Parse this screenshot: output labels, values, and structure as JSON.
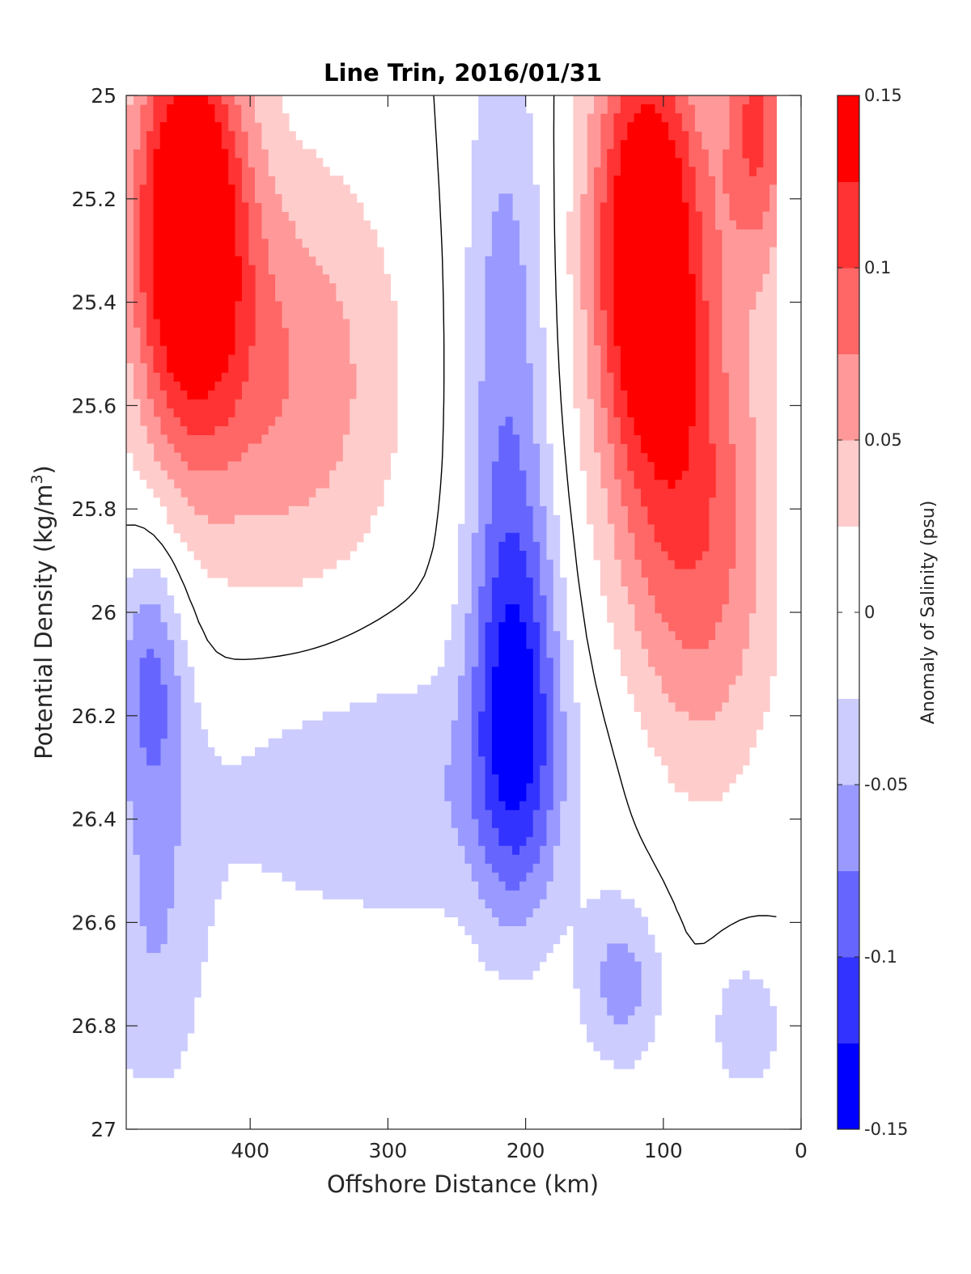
{
  "chart_data": {
    "type": "heatmap",
    "title": "Line Trin, 2016/01/31",
    "xlabel": "Offshore Distance (km)",
    "ylabel_prefix": "Potential Density (kg/m",
    "ylabel_sup": "3",
    "ylabel_suffix": ")",
    "xlim": [
      490,
      0
    ],
    "ylim": [
      25,
      27
    ],
    "x_reversed": true,
    "y_reversed": true,
    "x_ticks": [
      400,
      300,
      200,
      100,
      0
    ],
    "x_tick_labels": [
      "400",
      "300",
      "200",
      "100",
      "0"
    ],
    "y_ticks": [
      25,
      25.2,
      25.4,
      25.6,
      25.8,
      26,
      26.2,
      26.4,
      26.6,
      26.8,
      27
    ],
    "y_tick_labels": [
      "25",
      "25.2",
      "25.4",
      "25.6",
      "25.8",
      "26",
      "26.2",
      "26.4",
      "26.6",
      "26.8",
      "27"
    ],
    "colorbar": {
      "label": "Anomaly of Salinity (psu)",
      "range": [
        -0.15,
        0.15
      ],
      "level_step": 0.025,
      "tick_values": [
        -0.15,
        -0.1,
        -0.05,
        0,
        0.05,
        0.1,
        0.15
      ],
      "tick_labels": [
        "-0.15",
        "-0.1",
        "-0.05",
        "0",
        "0.05",
        "0.1",
        "0.15"
      ],
      "colors_low_to_high": [
        "#0000ff",
        "#3333ff",
        "#6666ff",
        "#9999ff",
        "#ccccff",
        "#ffffff",
        "#ffffff",
        "#ffcccc",
        "#ff9999",
        "#ff6666",
        "#ff3333",
        "#ff0000"
      ]
    },
    "data_extent": {
      "x_min": 18,
      "x_max": 490,
      "y_min": 25,
      "y_max": 26.9
    },
    "features": [
      {
        "kind": "salty core",
        "x_center": 440,
        "y_top": 25,
        "y_bottom": 25.5,
        "peak": 0.15
      },
      {
        "kind": "salty core",
        "x_center": 115,
        "y_top": 25,
        "y_bottom": 25.55,
        "peak": 0.15
      },
      {
        "kind": "salty core",
        "x_center": 35,
        "y_top": 25,
        "y_bottom": 25.15,
        "peak": 0.15
      },
      {
        "kind": "fresh core",
        "x_center": 205,
        "y_top": 25.95,
        "y_bottom": 26.35,
        "peak": -0.1
      },
      {
        "kind": "fresh patch",
        "x_center": 470,
        "y_top": 25.95,
        "y_bottom": 26.3,
        "peak": -0.075
      },
      {
        "kind": "fresh patch",
        "x_center": 130,
        "y_top": 26.6,
        "y_bottom": 26.8,
        "peak": -0.075
      }
    ],
    "contour_level": 0
  }
}
